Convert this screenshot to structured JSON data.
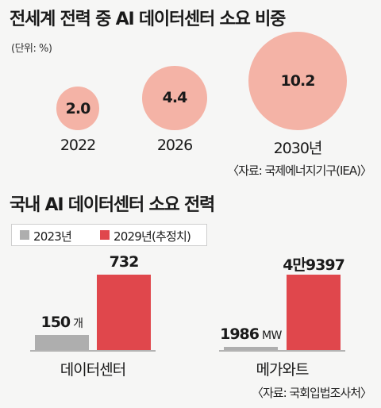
{
  "colors": {
    "background": "#f6f6f5",
    "bubble": "#f4b3a6",
    "series_2023": "#aeaeae",
    "series_2029": "#e0474c"
  },
  "chart_data": [
    {
      "type": "scatter",
      "title": "전세계 전력 중 AI 데이터센터 소요 비중",
      "unit_label": "(단위: %)",
      "categories": [
        "2022",
        "2026",
        "2030년"
      ],
      "values": [
        2.0,
        4.4,
        10.2
      ],
      "value_labels": [
        "2.0",
        "4.4",
        "10.2"
      ],
      "source": "〈자료: 국제에너지기구(IEA)〉"
    },
    {
      "type": "bar",
      "title": "국내 AI 데이터센터 소요 전력",
      "legend": [
        "2023년",
        "2029년(추정치)"
      ],
      "groups": [
        {
          "category": "데이터센터",
          "values": [
            150,
            732
          ],
          "value_labels": [
            "150",
            "732"
          ],
          "unit": "개",
          "ylim": [
            0,
            800
          ]
        },
        {
          "category": "메가와트",
          "values": [
            1986,
            49397
          ],
          "value_labels": [
            "1986",
            "4만9397"
          ],
          "unit": "MW",
          "ylim": [
            0,
            54000
          ]
        }
      ],
      "source": "〈자료: 국회입법조사처〉"
    }
  ]
}
